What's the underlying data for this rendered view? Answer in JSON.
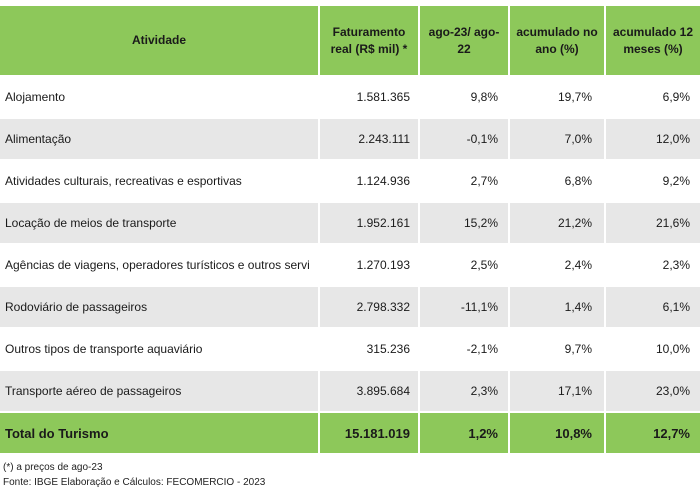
{
  "header": {
    "atividade": "Atividade",
    "faturamento": "Faturamento real (R$ mil) *",
    "ago": "ago-23/ ago-22",
    "acum_ano": "acumulado no ano (%)",
    "acum_12": "acumulado 12 meses (%)"
  },
  "rows": [
    {
      "atividade": "Alojamento",
      "faturamento": "1.581.365",
      "ago": "9,8%",
      "acum_ano": "19,7%",
      "acum_12": "6,9%"
    },
    {
      "atividade": "Alimentação",
      "faturamento": "2.243.111",
      "ago": "-0,1%",
      "acum_ano": "7,0%",
      "acum_12": "12,0%"
    },
    {
      "atividade": "Atividades culturais, recreativas e esportivas",
      "faturamento": "1.124.936",
      "ago": "2,7%",
      "acum_ano": "6,8%",
      "acum_12": "9,2%"
    },
    {
      "atividade": "Locação de meios de transporte",
      "faturamento": "1.952.161",
      "ago": "15,2%",
      "acum_ano": "21,2%",
      "acum_12": "21,6%"
    },
    {
      "atividade": " Agências de viagens, operadores turísticos e  outros servi",
      "faturamento": "1.270.193",
      "ago": "2,5%",
      "acum_ano": "2,4%",
      "acum_12": "2,3%"
    },
    {
      "atividade": "Rodoviário de passageiros",
      "faturamento": "2.798.332",
      "ago": "-11,1%",
      "acum_ano": "1,4%",
      "acum_12": "6,1%"
    },
    {
      "atividade": "Outros tipos de transporte aquaviário",
      "faturamento": "315.236",
      "ago": "-2,1%",
      "acum_ano": "9,7%",
      "acum_12": "10,0%"
    },
    {
      "atividade": "Transporte aéreo de passageiros",
      "faturamento": "3.895.684",
      "ago": "2,3%",
      "acum_ano": "17,1%",
      "acum_12": "23,0%"
    }
  ],
  "total": {
    "atividade": "Total do Turismo",
    "faturamento": "15.181.019",
    "ago": "1,2%",
    "acum_ano": "10,8%",
    "acum_12": "12,7%"
  },
  "notes": {
    "note1": "(*) a preços de ago-23",
    "note2": "Fonte: IBGE Elaboração e Cálculos: FECOMERCIO - 2023"
  },
  "colors": {
    "header_green": "#8dc85a",
    "row_gray": "#e7e7e7"
  }
}
